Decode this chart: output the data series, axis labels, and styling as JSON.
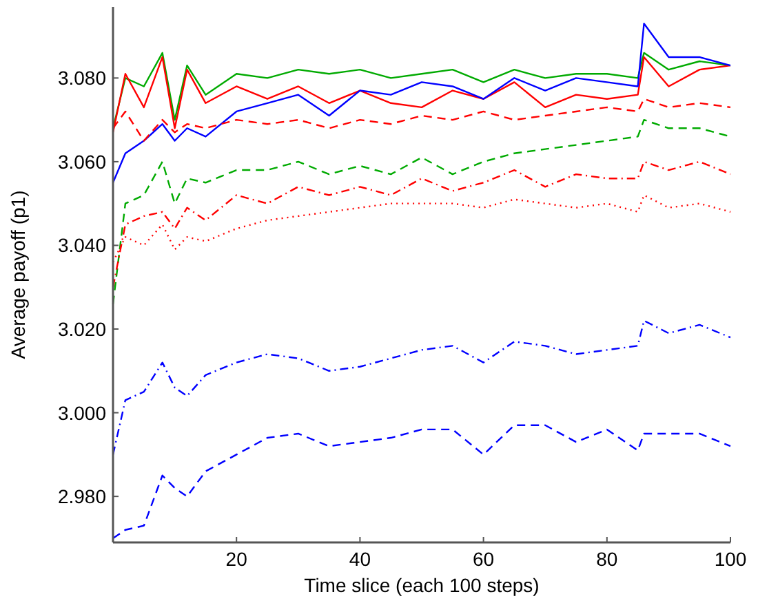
{
  "chart_data": {
    "type": "line",
    "xlabel": "Time slice (each 100 steps)",
    "ylabel": "Average payoff (p1)",
    "xlim": [
      0,
      100
    ],
    "xticks": [
      20,
      40,
      60,
      80,
      100
    ],
    "ylim": [
      2.969,
      3.097
    ],
    "yticks": [
      {
        "value": 2.98,
        "label": "2.980"
      },
      {
        "value": 3.0,
        "label": "3.000"
      },
      {
        "value": 3.02,
        "label": "3.020"
      },
      {
        "value": 3.04,
        "label": "3.040"
      },
      {
        "value": 3.06,
        "label": "3.060"
      },
      {
        "value": 3.08,
        "label": "3.080"
      }
    ],
    "grid": false,
    "marker": "none",
    "x": [
      0,
      2,
      5,
      8,
      10,
      12,
      15,
      20,
      25,
      30,
      35,
      40,
      45,
      50,
      55,
      60,
      65,
      70,
      75,
      80,
      85,
      86,
      90,
      95,
      100
    ],
    "series": [
      {
        "color": "#00aa00",
        "line_style": "solid",
        "values": [
          3.068,
          3.08,
          3.078,
          3.086,
          3.07,
          3.083,
          3.076,
          3.081,
          3.08,
          3.082,
          3.081,
          3.082,
          3.08,
          3.081,
          3.082,
          3.079,
          3.082,
          3.08,
          3.081,
          3.081,
          3.08,
          3.086,
          3.082,
          3.084,
          3.083
        ]
      },
      {
        "color": "#ff0000",
        "line_style": "solid",
        "values": [
          3.067,
          3.081,
          3.073,
          3.085,
          3.068,
          3.082,
          3.074,
          3.078,
          3.075,
          3.078,
          3.074,
          3.077,
          3.074,
          3.073,
          3.077,
          3.075,
          3.079,
          3.073,
          3.076,
          3.075,
          3.076,
          3.085,
          3.078,
          3.082,
          3.083
        ]
      },
      {
        "color": "#0000ff",
        "line_style": "solid",
        "values": [
          3.055,
          3.062,
          3.065,
          3.069,
          3.065,
          3.068,
          3.066,
          3.072,
          3.074,
          3.076,
          3.071,
          3.077,
          3.076,
          3.079,
          3.078,
          3.075,
          3.08,
          3.077,
          3.08,
          3.079,
          3.078,
          3.093,
          3.085,
          3.085,
          3.083
        ]
      },
      {
        "color": "#ff0000",
        "line_style": "dashed",
        "values": [
          3.068,
          3.072,
          3.065,
          3.07,
          3.067,
          3.069,
          3.068,
          3.07,
          3.069,
          3.07,
          3.068,
          3.07,
          3.069,
          3.071,
          3.07,
          3.072,
          3.07,
          3.071,
          3.072,
          3.073,
          3.072,
          3.075,
          3.073,
          3.074,
          3.073
        ]
      },
      {
        "color": "#00aa00",
        "line_style": "dashed",
        "values": [
          3.026,
          3.05,
          3.052,
          3.06,
          3.05,
          3.056,
          3.055,
          3.058,
          3.058,
          3.06,
          3.057,
          3.059,
          3.057,
          3.061,
          3.057,
          3.06,
          3.062,
          3.063,
          3.064,
          3.065,
          3.066,
          3.07,
          3.068,
          3.068,
          3.066
        ]
      },
      {
        "color": "#ff0000",
        "line_style": "dashdot",
        "values": [
          3.03,
          3.045,
          3.047,
          3.048,
          3.044,
          3.049,
          3.046,
          3.052,
          3.05,
          3.054,
          3.052,
          3.054,
          3.052,
          3.056,
          3.053,
          3.055,
          3.058,
          3.054,
          3.057,
          3.056,
          3.056,
          3.06,
          3.058,
          3.06,
          3.057
        ]
      },
      {
        "color": "#ff0000",
        "line_style": "dotted",
        "values": [
          3.036,
          3.042,
          3.04,
          3.045,
          3.039,
          3.042,
          3.041,
          3.044,
          3.046,
          3.047,
          3.048,
          3.049,
          3.05,
          3.05,
          3.05,
          3.049,
          3.051,
          3.05,
          3.049,
          3.05,
          3.048,
          3.052,
          3.049,
          3.05,
          3.048
        ]
      },
      {
        "color": "#0000ff",
        "line_style": "dashdot",
        "values": [
          2.99,
          3.003,
          3.005,
          3.012,
          3.006,
          3.004,
          3.009,
          3.012,
          3.014,
          3.013,
          3.01,
          3.011,
          3.013,
          3.015,
          3.016,
          3.012,
          3.017,
          3.016,
          3.014,
          3.015,
          3.016,
          3.022,
          3.019,
          3.021,
          3.018
        ]
      },
      {
        "color": "#0000ff",
        "line_style": "dashed",
        "values": [
          2.97,
          2.972,
          2.973,
          2.985,
          2.982,
          2.98,
          2.986,
          2.99,
          2.994,
          2.995,
          2.992,
          2.993,
          2.994,
          2.996,
          2.996,
          2.99,
          2.997,
          2.997,
          2.993,
          2.996,
          2.991,
          2.995,
          2.995,
          2.995,
          2.992
        ]
      }
    ]
  }
}
